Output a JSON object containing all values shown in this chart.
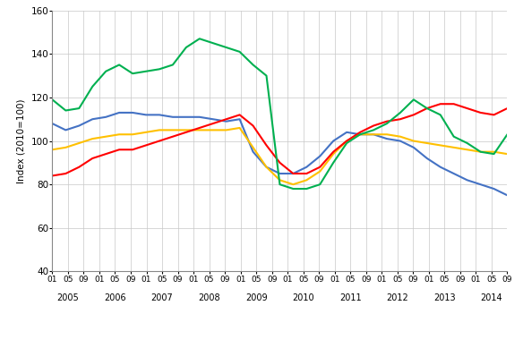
{
  "title": "",
  "ylabel": "Index (2010=100)",
  "ylim": [
    40,
    160
  ],
  "yticks": [
    40,
    60,
    80,
    100,
    120,
    140,
    160
  ],
  "line_colors": {
    "textil": "#4472c4",
    "papper": "#ffc000",
    "kemi": "#ff0000",
    "metall": "#00b050"
  },
  "background_color": "#ffffff",
  "grid_color": "#c8c8c8",
  "line_width": 1.5,
  "textil": [
    108,
    105,
    107,
    110,
    111,
    113,
    113,
    112,
    112,
    111,
    111,
    111,
    110,
    109,
    110,
    95,
    88,
    85,
    85,
    88,
    93,
    100,
    104,
    103,
    103,
    101,
    100,
    97,
    92,
    88,
    85,
    82,
    80,
    78,
    75
  ],
  "papper": [
    96,
    97,
    99,
    101,
    102,
    103,
    103,
    104,
    105,
    105,
    105,
    105,
    105,
    105,
    106,
    97,
    88,
    82,
    80,
    82,
    86,
    94,
    100,
    103,
    103,
    103,
    102,
    100,
    99,
    98,
    97,
    96,
    95,
    95,
    94
  ],
  "kemi": [
    84,
    85,
    88,
    92,
    94,
    96,
    96,
    98,
    100,
    102,
    104,
    106,
    108,
    110,
    112,
    107,
    98,
    90,
    85,
    85,
    88,
    95,
    100,
    104,
    107,
    109,
    110,
    112,
    115,
    117,
    117,
    115,
    113,
    112,
    115
  ],
  "metall": [
    119,
    114,
    115,
    125,
    132,
    135,
    131,
    132,
    133,
    135,
    143,
    147,
    145,
    143,
    141,
    135,
    130,
    80,
    78,
    78,
    80,
    90,
    99,
    103,
    105,
    108,
    113,
    119,
    115,
    112,
    102,
    99,
    95,
    94,
    103
  ]
}
